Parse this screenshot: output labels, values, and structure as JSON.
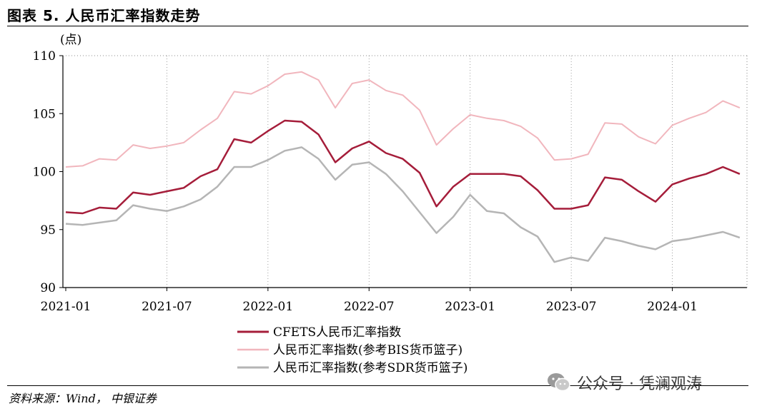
{
  "header": {
    "title": "图表 5. 人民币汇率指数走势"
  },
  "footer": {
    "source": "资料来源：Wind， 中银证券"
  },
  "watermark": {
    "text": "公众号 · 凭澜观涛",
    "icon": "wechat-icon"
  },
  "chart_data": {
    "type": "line",
    "ylabel": "(点)",
    "ylim": [
      90,
      110
    ],
    "yticks": [
      90,
      95,
      100,
      105,
      110
    ],
    "xtick_labels": [
      "2021-01",
      "2021-07",
      "2022-01",
      "2022-07",
      "2023-01",
      "2023-07",
      "2024-01"
    ],
    "grid": "dotted-vertical",
    "legend_position": "bottom",
    "x": [
      "2021-01",
      "2021-02",
      "2021-03",
      "2021-04",
      "2021-05",
      "2021-06",
      "2021-07",
      "2021-08",
      "2021-09",
      "2021-10",
      "2021-11",
      "2021-12",
      "2022-01",
      "2022-02",
      "2022-03",
      "2022-04",
      "2022-05",
      "2022-06",
      "2022-07",
      "2022-08",
      "2022-09",
      "2022-10",
      "2022-11",
      "2022-12",
      "2023-01",
      "2023-02",
      "2023-03",
      "2023-04",
      "2023-05",
      "2023-06",
      "2023-07",
      "2023-08",
      "2023-09",
      "2023-10",
      "2023-11",
      "2023-12",
      "2024-01",
      "2024-02",
      "2024-03",
      "2024-04",
      "2024-05"
    ],
    "series": [
      {
        "name": "CFETS人民币汇率指数",
        "color": "#a51d3a",
        "width": 2.5,
        "values": [
          96.5,
          96.4,
          96.9,
          96.8,
          98.2,
          98.0,
          98.3,
          98.6,
          99.6,
          100.2,
          102.8,
          102.5,
          103.5,
          104.4,
          104.3,
          103.2,
          100.8,
          102.0,
          102.6,
          101.6,
          101.1,
          99.9,
          97.0,
          98.7,
          99.8,
          99.8,
          99.8,
          99.6,
          98.4,
          96.8,
          96.8,
          97.1,
          99.5,
          99.3,
          98.3,
          97.4,
          98.9,
          99.4,
          99.8,
          100.4,
          99.8
        ]
      },
      {
        "name": "人民币汇率指数(参考BIS货币篮子)",
        "color": "#f1b6bd",
        "width": 2,
        "values": [
          100.4,
          100.5,
          101.1,
          101.0,
          102.3,
          102.0,
          102.2,
          102.5,
          103.6,
          104.6,
          106.9,
          106.7,
          107.4,
          108.4,
          108.6,
          107.9,
          105.5,
          107.6,
          107.9,
          107.0,
          106.6,
          105.3,
          102.3,
          103.7,
          104.9,
          104.6,
          104.4,
          103.9,
          102.9,
          101.0,
          101.1,
          101.5,
          104.2,
          104.1,
          103.0,
          102.4,
          104.0,
          104.6,
          105.1,
          106.1,
          105.5
        ]
      },
      {
        "name": "人民币汇率指数(参考SDR货币篮子)",
        "color": "#b5b5b5",
        "width": 2.5,
        "values": [
          95.5,
          95.4,
          95.6,
          95.8,
          97.1,
          96.8,
          96.6,
          97.0,
          97.6,
          98.7,
          100.4,
          100.4,
          101.0,
          101.8,
          102.1,
          101.1,
          99.3,
          100.6,
          100.8,
          99.8,
          98.3,
          96.5,
          94.7,
          96.1,
          98.0,
          96.6,
          96.4,
          95.2,
          94.4,
          92.2,
          92.6,
          92.3,
          94.3,
          94.0,
          93.6,
          93.3,
          94.0,
          94.2,
          94.5,
          94.8,
          94.3
        ]
      }
    ]
  }
}
